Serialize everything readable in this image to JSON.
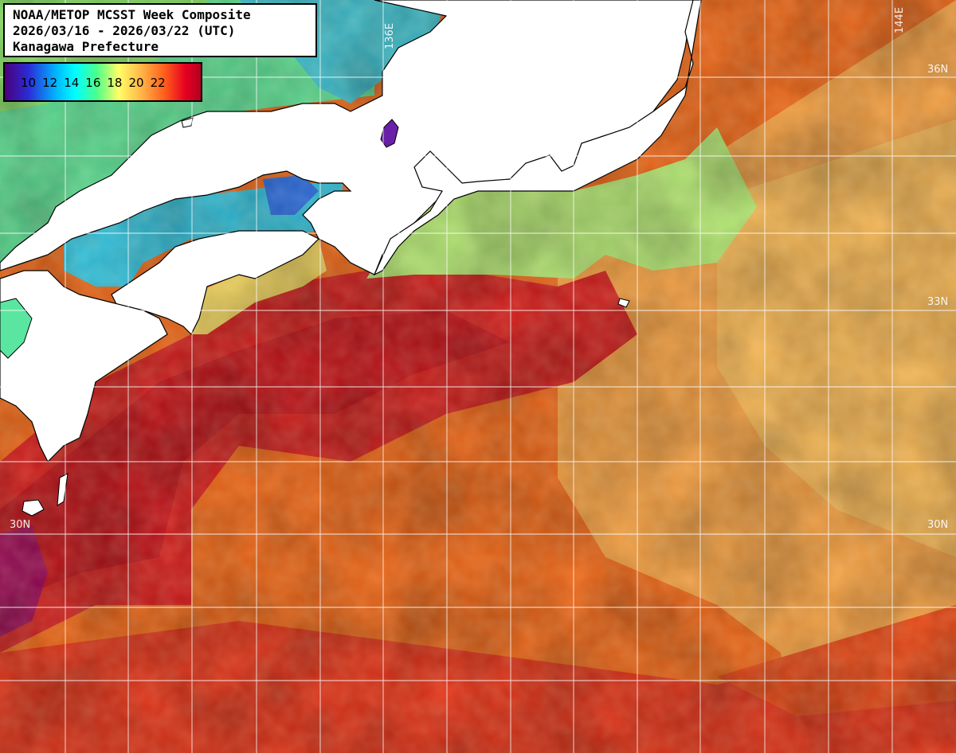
{
  "title": {
    "line1": "NOAA/METOP MCSST Week Composite",
    "line2": "2026/03/16 - 2026/03/22 (UTC)",
    "line3": "Kanagawa Prefecture"
  },
  "legend": {
    "ticks": [
      "10",
      "12",
      "14",
      "16",
      "18",
      "20",
      "22"
    ],
    "colors": [
      "#4b007a",
      "#2b2bd6",
      "#00b4ff",
      "#00ffff",
      "#4dff8a",
      "#ffff66",
      "#ffb347",
      "#ff5a1a",
      "#e60022",
      "#b30020"
    ]
  },
  "grid_labels": {
    "lon_136": "136E",
    "lon_144": "144E",
    "lat_36": "36N",
    "lat_33": "33N",
    "lat_30_left": "30N",
    "lat_30_right": "30N"
  }
}
